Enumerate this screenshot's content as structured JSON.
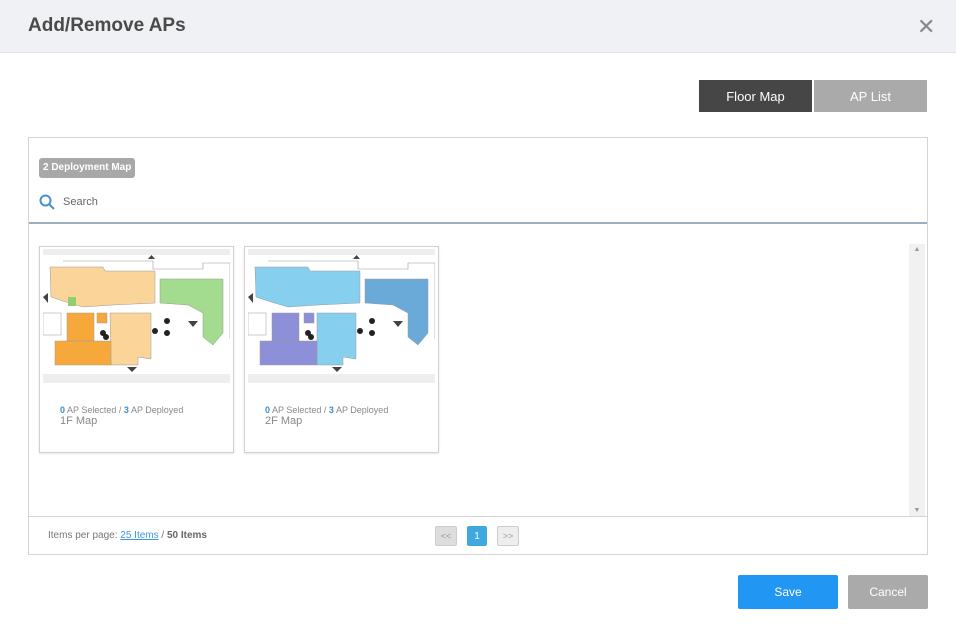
{
  "dialog": {
    "title": "Add/Remove APs",
    "close_icon": "close-icon"
  },
  "view_toggle": {
    "floor_map": "Floor Map",
    "ap_list": "AP List",
    "active": "Floor Map"
  },
  "panel": {
    "badge": "2 Deployment Map",
    "search_placeholder": "Search",
    "maps": [
      {
        "name": "1F Map",
        "selected": "0",
        "selected_label": "AP Selected /",
        "deployed": "3",
        "deployed_label": "AP Deployed"
      },
      {
        "name": "2F Map",
        "selected": "0",
        "selected_label": "AP Selected /",
        "deployed": "3",
        "deployed_label": "AP Deployed"
      }
    ],
    "footer": {
      "items_per_page_label": "Items per page:",
      "items_per_page": "25 Items",
      "sep": "/",
      "total": "50 Items",
      "prev": "<<",
      "page": "1",
      "next": ">>"
    }
  },
  "actions": {
    "save": "Save",
    "cancel": "Cancel"
  },
  "colors": {
    "primary": "#2196f3",
    "toggle_active": "#464646",
    "toggle_inactive": "#aaaaaa",
    "page_active": "#3ea8df"
  }
}
